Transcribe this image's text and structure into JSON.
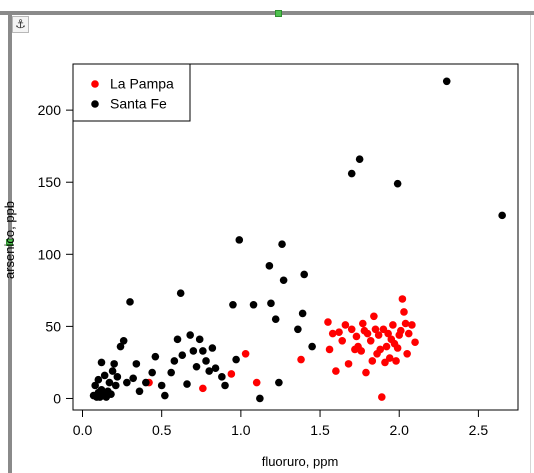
{
  "anchor_icon": "⚓",
  "chart_data": {
    "type": "scatter",
    "title": "",
    "xlabel": "fluoruro, ppm",
    "ylabel": "arsenico, ppb",
    "xlim": [
      -0.06,
      2.75
    ],
    "ylim": [
      -8,
      232
    ],
    "xticks": [
      0.0,
      0.5,
      1.0,
      1.5,
      2.0,
      2.5
    ],
    "xtick_labels": [
      "0.0",
      "0.5",
      "1.0",
      "1.5",
      "2.0",
      "2.5"
    ],
    "yticks": [
      0,
      50,
      100,
      150,
      200
    ],
    "ytick_labels": [
      "0",
      "50",
      "100",
      "150",
      "200"
    ],
    "grid": false,
    "legend_position": "top-left",
    "series": [
      {
        "name": "La Pampa",
        "color": "#ff0000",
        "points": [
          [
            0.42,
            11
          ],
          [
            0.76,
            7
          ],
          [
            0.94,
            17
          ],
          [
            1.03,
            31
          ],
          [
            1.1,
            11
          ],
          [
            1.55,
            53
          ],
          [
            1.58,
            45
          ],
          [
            1.56,
            34
          ],
          [
            1.6,
            19
          ],
          [
            1.62,
            46
          ],
          [
            1.64,
            40
          ],
          [
            1.66,
            51
          ],
          [
            1.68,
            24
          ],
          [
            1.7,
            48
          ],
          [
            1.72,
            34
          ],
          [
            1.73,
            43
          ],
          [
            1.74,
            36
          ],
          [
            1.76,
            33
          ],
          [
            1.77,
            52
          ],
          [
            1.78,
            47
          ],
          [
            1.79,
            18
          ],
          [
            1.8,
            45
          ],
          [
            1.82,
            40
          ],
          [
            1.83,
            26
          ],
          [
            1.84,
            57
          ],
          [
            1.85,
            48
          ],
          [
            1.86,
            31
          ],
          [
            1.87,
            44
          ],
          [
            1.88,
            34
          ],
          [
            1.89,
            1
          ],
          [
            1.9,
            48
          ],
          [
            1.91,
            25
          ],
          [
            1.92,
            36
          ],
          [
            1.93,
            45
          ],
          [
            1.94,
            28
          ],
          [
            1.95,
            41
          ],
          [
            1.96,
            51
          ],
          [
            1.97,
            38
          ],
          [
            1.98,
            26
          ],
          [
            1.99,
            35
          ],
          [
            2.0,
            44
          ],
          [
            2.01,
            47
          ],
          [
            2.02,
            69
          ],
          [
            2.03,
            60
          ],
          [
            2.04,
            52
          ],
          [
            2.05,
            31
          ],
          [
            2.06,
            45
          ],
          [
            2.08,
            51
          ],
          [
            2.1,
            39
          ],
          [
            1.38,
            27
          ]
        ]
      },
      {
        "name": "Santa Fe",
        "color": "#000000",
        "points": [
          [
            0.07,
            2
          ],
          [
            0.08,
            9
          ],
          [
            0.09,
            1
          ],
          [
            0.1,
            4
          ],
          [
            0.1,
            13
          ],
          [
            0.11,
            1
          ],
          [
            0.12,
            6
          ],
          [
            0.12,
            25
          ],
          [
            0.13,
            2
          ],
          [
            0.14,
            16
          ],
          [
            0.15,
            1
          ],
          [
            0.16,
            5
          ],
          [
            0.17,
            11
          ],
          [
            0.18,
            3
          ],
          [
            0.19,
            19
          ],
          [
            0.2,
            24
          ],
          [
            0.21,
            9
          ],
          [
            0.22,
            15
          ],
          [
            0.24,
            36
          ],
          [
            0.26,
            40
          ],
          [
            0.3,
            67
          ],
          [
            0.28,
            11
          ],
          [
            0.32,
            14
          ],
          [
            0.34,
            24
          ],
          [
            0.36,
            5
          ],
          [
            0.4,
            11
          ],
          [
            0.44,
            18
          ],
          [
            0.46,
            29
          ],
          [
            0.5,
            9
          ],
          [
            0.52,
            2
          ],
          [
            0.56,
            18
          ],
          [
            0.58,
            26
          ],
          [
            0.6,
            41
          ],
          [
            0.62,
            73
          ],
          [
            0.63,
            30
          ],
          [
            0.66,
            10
          ],
          [
            0.68,
            44
          ],
          [
            0.7,
            33
          ],
          [
            0.72,
            22
          ],
          [
            0.74,
            41
          ],
          [
            0.76,
            33
          ],
          [
            0.78,
            26
          ],
          [
            0.8,
            19
          ],
          [
            0.82,
            35
          ],
          [
            0.84,
            21
          ],
          [
            0.88,
            15
          ],
          [
            0.9,
            9
          ],
          [
            0.95,
            65
          ],
          [
            0.99,
            110
          ],
          [
            0.97,
            27
          ],
          [
            1.08,
            65
          ],
          [
            1.12,
            0
          ],
          [
            1.18,
            92
          ],
          [
            1.19,
            66
          ],
          [
            1.22,
            55
          ],
          [
            1.24,
            11
          ],
          [
            1.26,
            107
          ],
          [
            1.27,
            82
          ],
          [
            1.36,
            48
          ],
          [
            1.39,
            59
          ],
          [
            1.4,
            86
          ],
          [
            1.45,
            36
          ],
          [
            1.7,
            156
          ],
          [
            1.75,
            166
          ],
          [
            1.99,
            149
          ],
          [
            2.3,
            220
          ],
          [
            2.65,
            127
          ]
        ]
      }
    ]
  }
}
